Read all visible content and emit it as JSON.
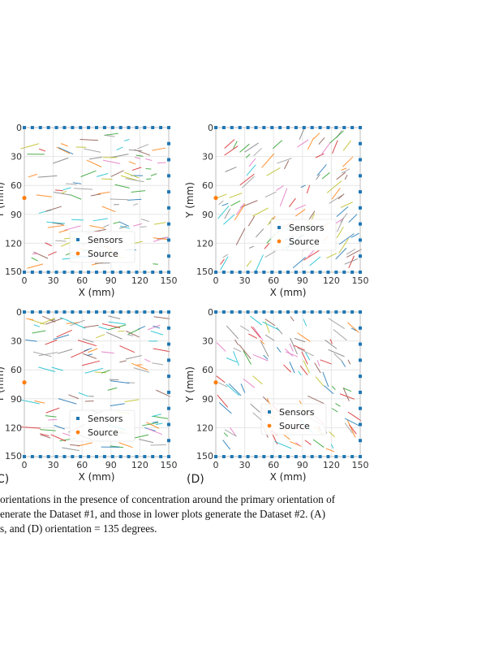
{
  "chart_data": [
    {
      "id": "A",
      "type": "scatter",
      "panel_label": "",
      "xlabel": "X (mm)",
      "ylabel": "Y (mm)",
      "xlim": [
        0,
        150
      ],
      "ylim": [
        150,
        0
      ],
      "ticks": [
        0,
        30,
        60,
        90,
        120,
        150
      ],
      "grid": true,
      "legend": [
        "Sensors",
        "Source"
      ],
      "legend_placement": "lower-center",
      "primary_orientation_deg": 0,
      "source": {
        "x": 0,
        "y": 73
      }
    },
    {
      "id": "B",
      "type": "scatter",
      "panel_label": "",
      "xlabel": "X (mm)",
      "ylabel": "Y (mm)",
      "xlim": [
        0,
        150
      ],
      "ylim": [
        150,
        0
      ],
      "ticks": [
        0,
        30,
        60,
        90,
        120,
        150
      ],
      "grid": true,
      "legend": [
        "Sensors",
        "Source"
      ],
      "legend_placement": "center-right",
      "primary_orientation_deg": 45,
      "source": {
        "x": 0,
        "y": 73
      }
    },
    {
      "id": "C",
      "type": "scatter",
      "panel_label": "C)",
      "xlabel": "X (mm)",
      "ylabel": "Y (mm)",
      "xlim": [
        0,
        150
      ],
      "ylim": [
        150,
        0
      ],
      "ticks": [
        0,
        30,
        60,
        90,
        120,
        150
      ],
      "grid": true,
      "legend": [
        "Sensors",
        "Source"
      ],
      "legend_placement": "lower-center",
      "primary_orientation_deg": 0,
      "source": {
        "x": 0,
        "y": 73
      }
    },
    {
      "id": "D",
      "type": "scatter",
      "panel_label": "(D)",
      "xlabel": "X (mm)",
      "ylabel": "Y (mm)",
      "xlim": [
        0,
        150
      ],
      "ylim": [
        150,
        0
      ],
      "ticks": [
        0,
        30,
        60,
        90,
        120,
        150
      ],
      "grid": true,
      "legend": [
        "Sensors",
        "Source"
      ],
      "legend_placement": "center-right",
      "primary_orientation_deg": 135,
      "source": {
        "x": 0,
        "y": 73
      }
    }
  ],
  "colors": {
    "sensor": "#1f77b4",
    "source": "#ff7f0e",
    "grid": "#e6e6e6",
    "axis": "#444444",
    "segments": [
      "#9a9a9a",
      "#1f77b4",
      "#ff7f0e",
      "#2ca02c",
      "#17becf",
      "#bcbd22",
      "#8c564b",
      "#d62728",
      "#7f7f7f",
      "#e377c2"
    ]
  },
  "caption": {
    "line1": "orientations in the presence of concentration around the primary orientation of",
    "line2": "enerate the Dataset #1, and those in lower plots generate the Dataset #2. (A)",
    "line3": "s, and (D) orientation = 135 degrees."
  }
}
